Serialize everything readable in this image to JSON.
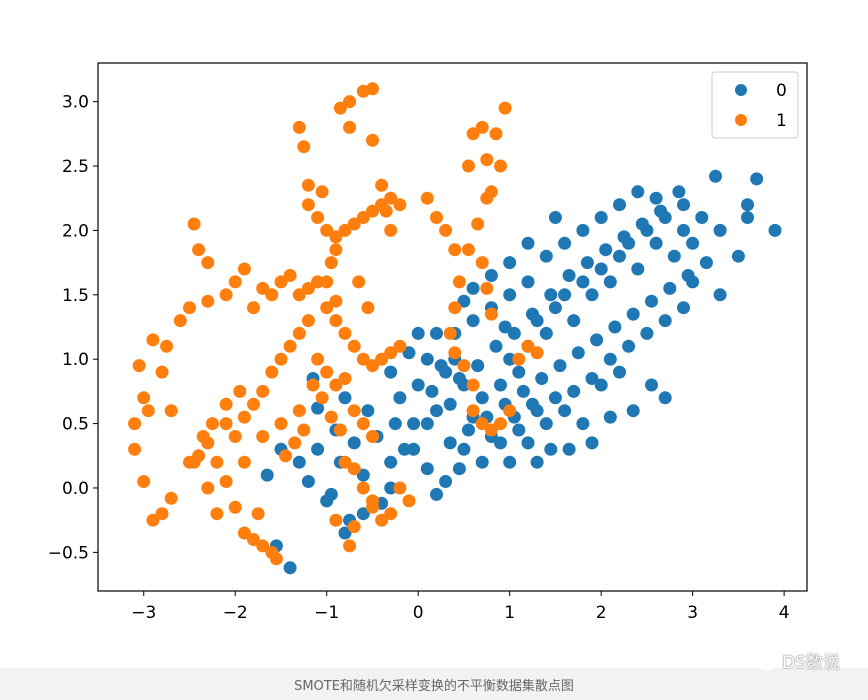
{
  "caption": "SMOTE和随机欠采样变换的不平衡数据集散点图",
  "watermark": {
    "text": "DS数说",
    "icon": "wechat-icon"
  },
  "chart_data": {
    "type": "scatter",
    "title": "",
    "xlabel": "",
    "ylabel": "",
    "xlim": [
      -3.5,
      4.25
    ],
    "ylim": [
      -0.8,
      3.3
    ],
    "xticks": [
      -3,
      -2,
      -1,
      0,
      1,
      2,
      3,
      4
    ],
    "yticks": [
      -0.5,
      0.0,
      0.5,
      1.0,
      1.5,
      2.0,
      2.5,
      3.0
    ],
    "xtick_labels": [
      "−3",
      "−2",
      "−1",
      "0",
      "1",
      "2",
      "3",
      "4"
    ],
    "ytick_labels": [
      "−0.5",
      "0.0",
      "0.5",
      "1.0",
      "1.5",
      "2.0",
      "2.5",
      "3.0"
    ],
    "grid": false,
    "legend_position": "top-right",
    "series": [
      {
        "name": "0",
        "color": "#1f77b4",
        "points": [
          [
            -1.4,
            -0.62
          ],
          [
            -1.55,
            -0.45
          ],
          [
            -0.8,
            -0.35
          ],
          [
            -0.4,
            -0.12
          ],
          [
            -0.3,
            0.0
          ],
          [
            -1.0,
            -0.1
          ],
          [
            -0.6,
            0.1
          ],
          [
            -1.2,
            0.05
          ],
          [
            -1.1,
            0.3
          ],
          [
            -0.9,
            0.45
          ],
          [
            -1.1,
            0.62
          ],
          [
            -1.15,
            0.85
          ],
          [
            -0.8,
            0.7
          ],
          [
            -1.65,
            0.1
          ],
          [
            -1.5,
            0.3
          ],
          [
            -1.3,
            0.2
          ],
          [
            -0.6,
            -0.2
          ],
          [
            -0.3,
            0.2
          ],
          [
            -0.15,
            0.3
          ],
          [
            -0.05,
            0.5
          ],
          [
            0.1,
            0.5
          ],
          [
            0.2,
            0.6
          ],
          [
            0.0,
            0.8
          ],
          [
            0.1,
            1.0
          ],
          [
            -0.2,
            0.7
          ],
          [
            0.3,
            0.9
          ],
          [
            0.5,
            0.8
          ],
          [
            0.4,
            1.0
          ],
          [
            0.6,
            0.55
          ],
          [
            0.8,
            0.4
          ],
          [
            0.7,
            0.7
          ],
          [
            0.9,
            0.8
          ],
          [
            1.0,
            1.0
          ],
          [
            1.1,
            0.9
          ],
          [
            1.2,
            1.1
          ],
          [
            1.3,
            1.3
          ],
          [
            1.4,
            1.2
          ],
          [
            1.5,
            1.4
          ],
          [
            1.6,
            1.5
          ],
          [
            1.7,
            1.3
          ],
          [
            1.8,
            1.6
          ],
          [
            1.9,
            1.5
          ],
          [
            2.0,
            1.7
          ],
          [
            2.1,
            1.6
          ],
          [
            2.2,
            1.8
          ],
          [
            2.3,
            1.9
          ],
          [
            2.4,
            1.7
          ],
          [
            2.5,
            2.0
          ],
          [
            2.6,
            1.9
          ],
          [
            2.7,
            2.1
          ],
          [
            2.8,
            1.8
          ],
          [
            2.9,
            2.0
          ],
          [
            3.0,
            1.9
          ],
          [
            3.1,
            2.1
          ],
          [
            3.3,
            2.0
          ],
          [
            3.6,
            2.1
          ],
          [
            3.9,
            2.0
          ],
          [
            3.7,
            2.4
          ],
          [
            3.6,
            2.2
          ],
          [
            3.25,
            2.42
          ],
          [
            3.5,
            1.8
          ],
          [
            3.3,
            1.5
          ],
          [
            3.0,
            1.6
          ],
          [
            2.9,
            2.2
          ],
          [
            2.6,
            2.25
          ],
          [
            2.4,
            2.3
          ],
          [
            2.2,
            2.2
          ],
          [
            2.0,
            2.1
          ],
          [
            1.8,
            2.0
          ],
          [
            1.6,
            1.9
          ],
          [
            1.4,
            1.8
          ],
          [
            1.2,
            1.6
          ],
          [
            1.0,
            1.5
          ],
          [
            0.8,
            1.4
          ],
          [
            0.6,
            1.3
          ],
          [
            0.4,
            1.2
          ],
          [
            0.2,
            1.2
          ],
          [
            0.0,
            1.2
          ],
          [
            -0.1,
            1.05
          ],
          [
            -0.3,
            0.9
          ],
          [
            0.5,
            0.3
          ],
          [
            0.7,
            0.2
          ],
          [
            0.9,
            0.35
          ],
          [
            1.1,
            0.45
          ],
          [
            1.3,
            0.6
          ],
          [
            1.5,
            0.7
          ],
          [
            1.7,
            0.75
          ],
          [
            1.9,
            0.85
          ],
          [
            2.1,
            1.0
          ],
          [
            2.3,
            1.1
          ],
          [
            2.5,
            1.2
          ],
          [
            2.7,
            1.3
          ],
          [
            2.9,
            1.4
          ],
          [
            1.0,
            0.2
          ],
          [
            1.2,
            0.35
          ],
          [
            1.4,
            0.5
          ],
          [
            1.6,
            0.6
          ],
          [
            1.8,
            0.5
          ],
          [
            2.0,
            0.8
          ],
          [
            2.2,
            0.9
          ],
          [
            1.25,
            0.65
          ],
          [
            0.3,
            0.05
          ],
          [
            0.45,
            0.15
          ],
          [
            0.2,
            -0.05
          ],
          [
            0.1,
            0.15
          ],
          [
            0.35,
            0.35
          ],
          [
            0.55,
            0.45
          ],
          [
            0.75,
            0.55
          ],
          [
            0.95,
            0.65
          ],
          [
            1.15,
            0.75
          ],
          [
            1.35,
            0.85
          ],
          [
            1.55,
            0.95
          ],
          [
            1.75,
            1.05
          ],
          [
            1.95,
            1.15
          ],
          [
            2.15,
            1.25
          ],
          [
            2.35,
            1.35
          ],
          [
            2.55,
            1.45
          ],
          [
            2.75,
            1.55
          ],
          [
            2.95,
            1.65
          ],
          [
            3.15,
            1.75
          ],
          [
            1.05,
            1.2
          ],
          [
            1.25,
            1.35
          ],
          [
            1.45,
            1.5
          ],
          [
            1.65,
            1.65
          ],
          [
            1.85,
            1.75
          ],
          [
            2.05,
            1.85
          ],
          [
            2.25,
            1.95
          ],
          [
            2.45,
            2.05
          ],
          [
            2.65,
            2.15
          ],
          [
            2.85,
            2.3
          ],
          [
            1.5,
            2.1
          ],
          [
            1.2,
            1.9
          ],
          [
            1.0,
            1.75
          ],
          [
            0.8,
            1.65
          ],
          [
            0.6,
            1.55
          ],
          [
            0.5,
            1.45
          ],
          [
            -0.05,
            0.3
          ],
          [
            -0.25,
            0.5
          ],
          [
            -0.45,
            0.4
          ],
          [
            -0.55,
            0.6
          ],
          [
            -0.7,
            0.35
          ],
          [
            -0.85,
            0.2
          ],
          [
            -0.95,
            -0.05
          ],
          [
            -0.75,
            -0.25
          ],
          [
            0.15,
            0.75
          ],
          [
            0.25,
            0.95
          ],
          [
            0.35,
            0.65
          ],
          [
            0.45,
            0.85
          ],
          [
            0.65,
            0.95
          ],
          [
            0.85,
            1.1
          ],
          [
            0.95,
            1.25
          ],
          [
            1.05,
            0.55
          ],
          [
            2.7,
            0.7
          ],
          [
            2.55,
            0.8
          ],
          [
            2.35,
            0.6
          ],
          [
            2.1,
            0.55
          ],
          [
            1.9,
            0.35
          ],
          [
            1.65,
            0.3
          ],
          [
            1.45,
            0.3
          ],
          [
            1.3,
            0.2
          ]
        ]
      },
      {
        "name": "1",
        "color": "#ff7f0e",
        "points": [
          [
            -3.1,
            0.5
          ],
          [
            -3.05,
            0.95
          ],
          [
            -3.0,
            0.7
          ],
          [
            -2.95,
            0.6
          ],
          [
            -2.8,
            0.9
          ],
          [
            -2.75,
            1.1
          ],
          [
            -2.7,
            0.6
          ],
          [
            -2.9,
            1.15
          ],
          [
            -3.1,
            0.3
          ],
          [
            -3.0,
            0.05
          ],
          [
            -2.9,
            -0.25
          ],
          [
            -2.8,
            -0.2
          ],
          [
            -2.7,
            -0.08
          ],
          [
            -2.5,
            0.2
          ],
          [
            -2.4,
            0.25
          ],
          [
            -2.3,
            0.35
          ],
          [
            -2.2,
            0.2
          ],
          [
            -2.3,
            0.0
          ],
          [
            -2.1,
            0.05
          ],
          [
            -2.2,
            -0.2
          ],
          [
            -2.0,
            -0.15
          ],
          [
            -2.1,
            0.5
          ],
          [
            -2.0,
            0.4
          ],
          [
            -1.9,
            0.55
          ],
          [
            -1.8,
            0.65
          ],
          [
            -1.7,
            0.75
          ],
          [
            -1.6,
            0.9
          ],
          [
            -1.5,
            1.0
          ],
          [
            -1.4,
            1.1
          ],
          [
            -1.3,
            1.2
          ],
          [
            -1.2,
            1.3
          ],
          [
            -1.1,
            1.0
          ],
          [
            -1.0,
            0.9
          ],
          [
            -0.9,
            0.8
          ],
          [
            -0.8,
            0.85
          ],
          [
            -0.7,
            0.6
          ],
          [
            -0.6,
            0.5
          ],
          [
            -0.5,
            0.4
          ],
          [
            -1.9,
            -0.35
          ],
          [
            -1.8,
            -0.4
          ],
          [
            -1.7,
            -0.45
          ],
          [
            -1.6,
            -0.5
          ],
          [
            -1.55,
            -0.55
          ],
          [
            -1.75,
            -0.2
          ],
          [
            -1.9,
            0.2
          ],
          [
            -1.7,
            0.4
          ],
          [
            -1.5,
            0.5
          ],
          [
            -1.3,
            0.6
          ],
          [
            -2.6,
            1.3
          ],
          [
            -2.5,
            1.4
          ],
          [
            -2.3,
            1.45
          ],
          [
            -2.1,
            1.5
          ],
          [
            -2.0,
            1.6
          ],
          [
            -1.9,
            1.7
          ],
          [
            -1.8,
            1.4
          ],
          [
            -1.7,
            1.55
          ],
          [
            -1.6,
            1.5
          ],
          [
            -1.5,
            1.6
          ],
          [
            -1.4,
            1.65
          ],
          [
            -1.3,
            1.5
          ],
          [
            -1.2,
            1.55
          ],
          [
            -1.1,
            1.6
          ],
          [
            -1.0,
            1.4
          ],
          [
            -0.9,
            1.3
          ],
          [
            -0.8,
            1.2
          ],
          [
            -0.7,
            1.1
          ],
          [
            -0.6,
            1.0
          ],
          [
            -0.5,
            0.95
          ],
          [
            -0.4,
            1.0
          ],
          [
            -0.3,
            1.05
          ],
          [
            -0.2,
            1.1
          ],
          [
            -2.45,
            2.05
          ],
          [
            -2.4,
            1.85
          ],
          [
            -2.3,
            1.75
          ],
          [
            -1.3,
            2.8
          ],
          [
            -1.25,
            2.65
          ],
          [
            -1.2,
            2.35
          ],
          [
            -1.1,
            2.1
          ],
          [
            -1.0,
            2.0
          ],
          [
            -0.9,
            1.95
          ],
          [
            -0.8,
            2.0
          ],
          [
            -0.7,
            2.05
          ],
          [
            -0.6,
            2.1
          ],
          [
            -0.5,
            2.15
          ],
          [
            -0.4,
            2.2
          ],
          [
            -0.3,
            2.25
          ],
          [
            -0.2,
            2.2
          ],
          [
            -0.85,
            2.95
          ],
          [
            -0.75,
            3.0
          ],
          [
            -0.6,
            3.08
          ],
          [
            -0.5,
            3.1
          ],
          [
            -0.5,
            2.7
          ],
          [
            -0.4,
            2.35
          ],
          [
            -0.35,
            2.15
          ],
          [
            -0.3,
            2.0
          ],
          [
            -0.75,
            2.8
          ],
          [
            0.1,
            2.25
          ],
          [
            0.2,
            2.1
          ],
          [
            0.3,
            2.0
          ],
          [
            0.4,
            1.85
          ],
          [
            0.45,
            1.6
          ],
          [
            0.4,
            1.4
          ],
          [
            0.35,
            1.2
          ],
          [
            0.4,
            1.05
          ],
          [
            0.5,
            0.95
          ],
          [
            0.6,
            0.8
          ],
          [
            0.6,
            0.6
          ],
          [
            0.7,
            0.5
          ],
          [
            0.8,
            0.45
          ],
          [
            0.9,
            0.5
          ],
          [
            1.0,
            0.6
          ],
          [
            0.55,
            2.5
          ],
          [
            0.6,
            2.75
          ],
          [
            0.7,
            2.8
          ],
          [
            0.75,
            2.55
          ],
          [
            0.8,
            2.3
          ],
          [
            0.9,
            2.5
          ],
          [
            0.95,
            2.95
          ],
          [
            0.85,
            2.75
          ],
          [
            0.75,
            2.25
          ],
          [
            0.65,
            2.05
          ],
          [
            0.55,
            1.85
          ],
          [
            0.7,
            1.75
          ],
          [
            0.75,
            1.55
          ],
          [
            0.8,
            1.35
          ],
          [
            1.2,
            1.1
          ],
          [
            1.3,
            1.05
          ],
          [
            1.1,
            1.0
          ],
          [
            -0.2,
            0.0
          ],
          [
            -0.1,
            -0.1
          ],
          [
            -0.3,
            -0.2
          ],
          [
            -0.4,
            -0.25
          ],
          [
            -0.5,
            -0.1
          ],
          [
            -0.6,
            0.0
          ],
          [
            -0.7,
            0.15
          ],
          [
            -0.8,
            0.2
          ],
          [
            -0.85,
            0.45
          ],
          [
            -0.95,
            0.55
          ],
          [
            -1.05,
            0.7
          ],
          [
            -1.15,
            0.8
          ],
          [
            -0.9,
            -0.25
          ],
          [
            -0.75,
            -0.45
          ],
          [
            -0.7,
            -0.3
          ],
          [
            -0.5,
            -0.15
          ],
          [
            -1.45,
            0.25
          ],
          [
            -1.35,
            0.35
          ],
          [
            -1.25,
            0.45
          ],
          [
            -1.95,
            0.75
          ],
          [
            -2.1,
            0.65
          ],
          [
            -2.25,
            0.5
          ],
          [
            -2.35,
            0.4
          ],
          [
            -2.45,
            0.2
          ],
          [
            -0.9,
            1.45
          ],
          [
            -1.0,
            1.6
          ],
          [
            -0.95,
            1.75
          ],
          [
            -0.9,
            1.85
          ],
          [
            -1.2,
            2.2
          ],
          [
            -1.05,
            2.3
          ],
          [
            -0.65,
            1.6
          ],
          [
            -0.55,
            1.4
          ]
        ]
      }
    ]
  }
}
